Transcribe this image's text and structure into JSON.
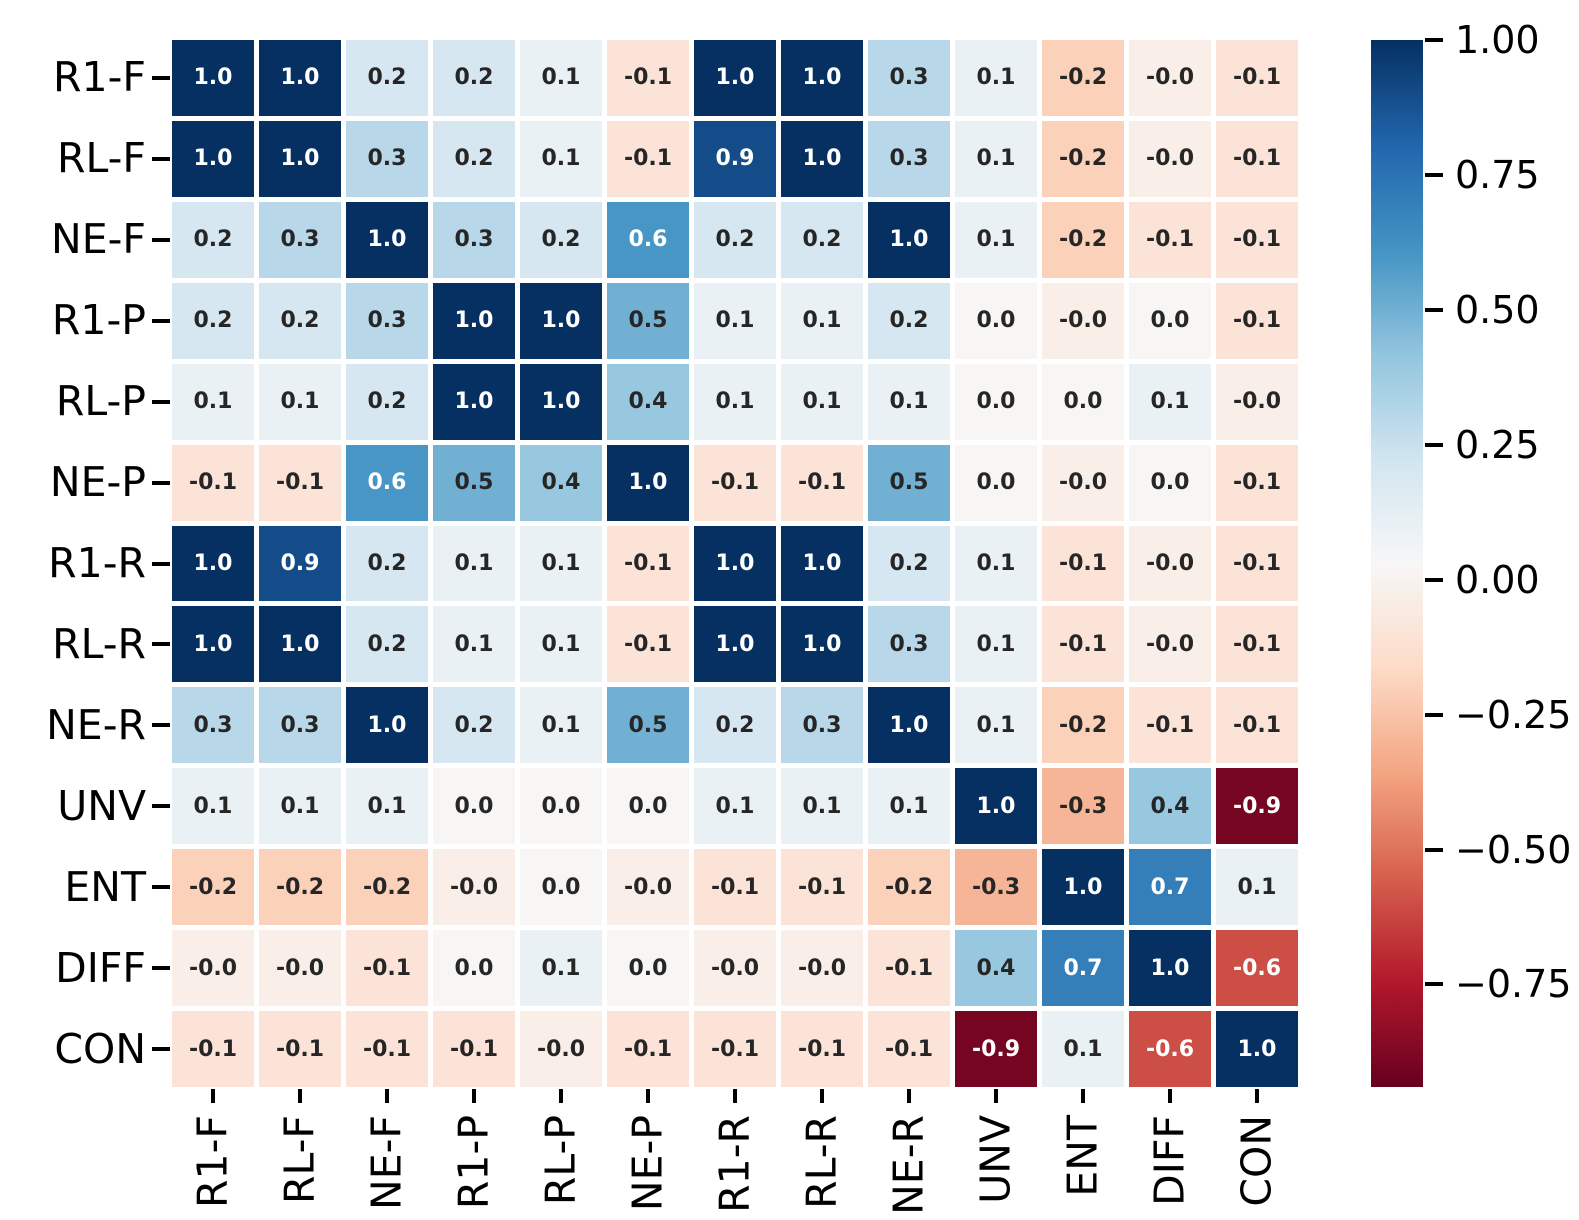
{
  "figure": {
    "title": ""
  },
  "chart_data": {
    "type": "heatmap",
    "title": "",
    "x_labels": [
      "R1-F",
      "RL-F",
      "NE-F",
      "R1-P",
      "RL-P",
      "NE-P",
      "R1-R",
      "RL-R",
      "NE-R",
      "UNV",
      "ENT",
      "DIFF",
      "CON"
    ],
    "y_labels": [
      "R1-F",
      "RL-F",
      "NE-F",
      "R1-P",
      "RL-P",
      "NE-P",
      "R1-R",
      "RL-R",
      "NE-R",
      "UNV",
      "ENT",
      "DIFF",
      "CON"
    ],
    "cells": [
      [
        "1.0",
        "1.0",
        "0.2",
        "0.2",
        "0.1",
        "-0.1",
        "1.0",
        "1.0",
        "0.3",
        "0.1",
        "-0.2",
        "-0.0",
        "-0.1"
      ],
      [
        "1.0",
        "1.0",
        "0.3",
        "0.2",
        "0.1",
        "-0.1",
        "0.9",
        "1.0",
        "0.3",
        "0.1",
        "-0.2",
        "-0.0",
        "-0.1"
      ],
      [
        "0.2",
        "0.3",
        "1.0",
        "0.3",
        "0.2",
        "0.6",
        "0.2",
        "0.2",
        "1.0",
        "0.1",
        "-0.2",
        "-0.1",
        "-0.1"
      ],
      [
        "0.2",
        "0.2",
        "0.3",
        "1.0",
        "1.0",
        "0.5",
        "0.1",
        "0.1",
        "0.2",
        "0.0",
        "-0.0",
        "0.0",
        "-0.1"
      ],
      [
        "0.1",
        "0.1",
        "0.2",
        "1.0",
        "1.0",
        "0.4",
        "0.1",
        "0.1",
        "0.1",
        "0.0",
        "0.0",
        "0.1",
        "-0.0"
      ],
      [
        "-0.1",
        "-0.1",
        "0.6",
        "0.5",
        "0.4",
        "1.0",
        "-0.1",
        "-0.1",
        "0.5",
        "0.0",
        "-0.0",
        "0.0",
        "-0.1"
      ],
      [
        "1.0",
        "0.9",
        "0.2",
        "0.1",
        "0.1",
        "-0.1",
        "1.0",
        "1.0",
        "0.2",
        "0.1",
        "-0.1",
        "-0.0",
        "-0.1"
      ],
      [
        "1.0",
        "1.0",
        "0.2",
        "0.1",
        "0.1",
        "-0.1",
        "1.0",
        "1.0",
        "0.3",
        "0.1",
        "-0.1",
        "-0.0",
        "-0.1"
      ],
      [
        "0.3",
        "0.3",
        "1.0",
        "0.2",
        "0.1",
        "0.5",
        "0.2",
        "0.3",
        "1.0",
        "0.1",
        "-0.2",
        "-0.1",
        "-0.1"
      ],
      [
        "0.1",
        "0.1",
        "0.1",
        "0.0",
        "0.0",
        "0.0",
        "0.1",
        "0.1",
        "0.1",
        "1.0",
        "-0.3",
        "0.4",
        "-0.9"
      ],
      [
        "-0.2",
        "-0.2",
        "-0.2",
        "-0.0",
        "0.0",
        "-0.0",
        "-0.1",
        "-0.1",
        "-0.2",
        "-0.3",
        "1.0",
        "0.7",
        "0.1"
      ],
      [
        "-0.0",
        "-0.0",
        "-0.1",
        "0.0",
        "0.1",
        "0.0",
        "-0.0",
        "-0.0",
        "-0.1",
        "0.4",
        "0.7",
        "1.0",
        "-0.6"
      ],
      [
        "-0.1",
        "-0.1",
        "-0.1",
        "-0.1",
        "-0.0",
        "-0.1",
        "-0.1",
        "-0.1",
        "-0.1",
        "-0.9",
        "0.1",
        "-0.6",
        "1.0"
      ]
    ],
    "colorbar": {
      "tick_labels": [
        "1.00",
        "0.75",
        "0.50",
        "0.25",
        "0.00",
        "−0.25",
        "−0.50",
        "−0.75"
      ],
      "tick_values": [
        1.0,
        0.75,
        0.5,
        0.25,
        0.0,
        -0.25,
        -0.5,
        -0.75
      ],
      "vmax": 1.0,
      "vmin": -0.94,
      "colormap": "RdBu",
      "anchor_colors": [
        "#67001f",
        "#b2182b",
        "#d6604d",
        "#f4a582",
        "#fddbc7",
        "#f7f7f7",
        "#d1e5f0",
        "#92c5de",
        "#4393c3",
        "#2166ac",
        "#053061"
      ],
      "position": "right"
    },
    "annotation_text_dark": "#262626",
    "annotation_text_light": "#ffffff",
    "white_text_abs_threshold": 0.55,
    "gridline_color": "#ffffff",
    "axes": {
      "x_tick_rotation": 90,
      "grid": false
    }
  }
}
